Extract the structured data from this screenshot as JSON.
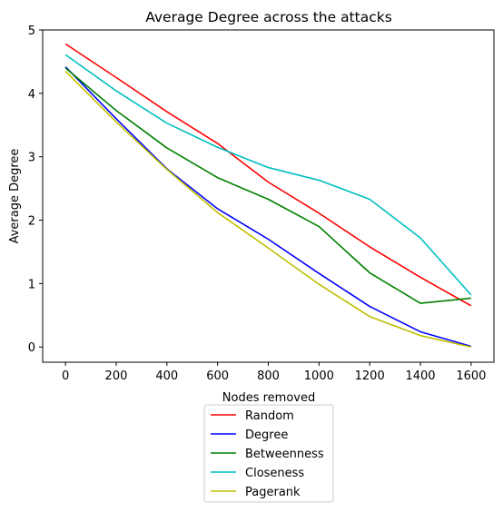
{
  "chart_data": {
    "type": "line",
    "title": "Average Degree across the attacks",
    "xlabel": "Nodes removed",
    "ylabel": "Average Degree",
    "x": [
      0,
      200,
      400,
      600,
      800,
      1000,
      1200,
      1400,
      1600
    ],
    "xticks": [
      "0",
      "200",
      "400",
      "600",
      "800",
      "1000",
      "1200",
      "1400",
      "1600"
    ],
    "yticks": [
      "0",
      "1",
      "2",
      "3",
      "4",
      "5"
    ],
    "xlim": [
      -90,
      1690
    ],
    "ylim": [
      -0.24,
      5.0
    ],
    "grid": false,
    "legend_position": "below-axes",
    "series": [
      {
        "name": "Random",
        "color": "#ff0000",
        "values": [
          4.78,
          4.25,
          3.71,
          3.21,
          2.6,
          2.11,
          1.58,
          1.1,
          0.65
        ]
      },
      {
        "name": "Degree",
        "color": "#0000ff",
        "values": [
          4.42,
          3.6,
          2.81,
          2.18,
          1.7,
          1.16,
          0.64,
          0.24,
          0.01
        ]
      },
      {
        "name": "Betweenness",
        "color": "#008000",
        "values": [
          4.4,
          3.73,
          3.14,
          2.67,
          2.33,
          1.9,
          1.17,
          0.69,
          0.77
        ]
      },
      {
        "name": "Closeness",
        "color": "#00bfbf",
        "values": [
          4.61,
          4.04,
          3.53,
          3.15,
          2.83,
          2.63,
          2.33,
          1.72,
          0.82
        ]
      },
      {
        "name": "Pagerank",
        "color": "#bfbf00",
        "values": [
          4.35,
          3.55,
          2.8,
          2.12,
          1.56,
          0.99,
          0.48,
          0.18,
          0.0
        ]
      }
    ]
  }
}
